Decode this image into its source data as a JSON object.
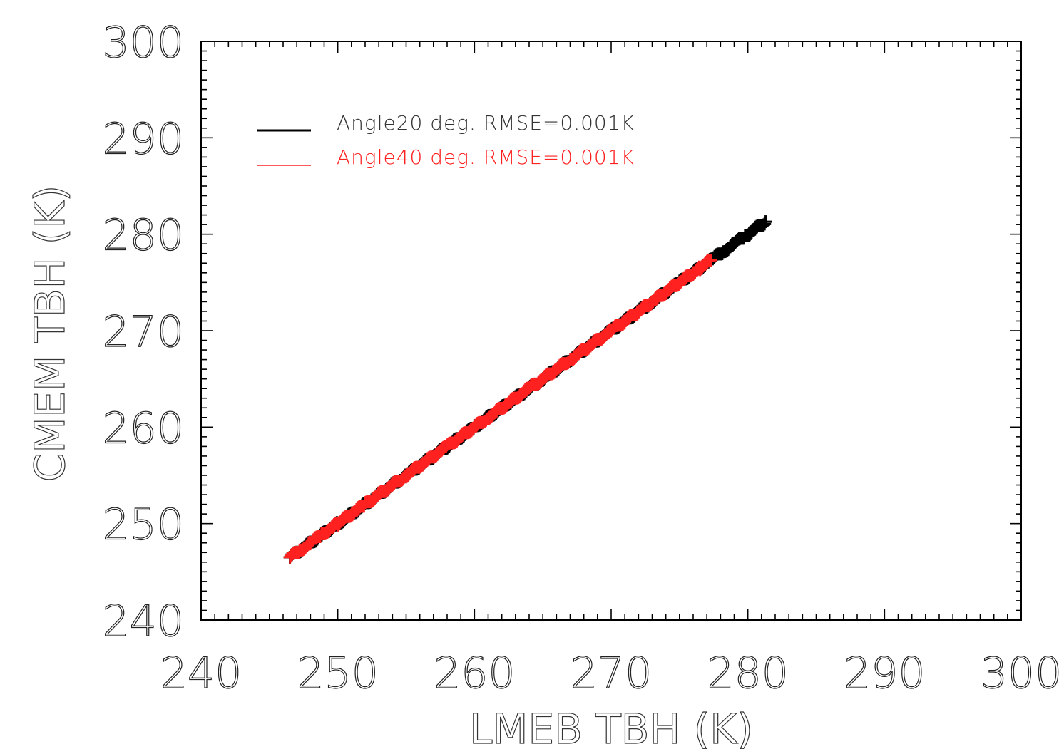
{
  "chart_data": {
    "type": "scatter",
    "title": "",
    "xlabel": "LMEB TBH (K)",
    "ylabel": "CMEM TBH (K)",
    "xlim": [
      240,
      300
    ],
    "ylim": [
      240,
      300
    ],
    "xticks": [
      240,
      250,
      260,
      270,
      280,
      290,
      300
    ],
    "yticks": [
      240,
      250,
      260,
      270,
      280,
      290,
      300
    ],
    "grid": false,
    "legend_position": "top-left",
    "marker": "plus",
    "series": [
      {
        "name": "Angle20 deg. RMSE=0.001K",
        "color": "#000000",
        "x_range": [
          246.5,
          281.5
        ],
        "values_description_free": true,
        "points": [
          [
            246.5,
            246.5
          ],
          [
            250,
            250
          ],
          [
            255,
            255
          ],
          [
            260,
            260
          ],
          [
            265,
            265
          ],
          [
            270,
            270
          ],
          [
            273,
            273
          ],
          [
            275,
            275
          ],
          [
            276.5,
            276.5
          ],
          [
            277.5,
            277.5
          ],
          [
            278.2,
            278.2
          ],
          [
            279,
            279
          ],
          [
            279.8,
            279.8
          ],
          [
            280.2,
            280.2
          ],
          [
            281.3,
            281.3
          ]
        ]
      },
      {
        "name": "Angle40 deg. RMSE=0.001K",
        "color": "#ff2020",
        "x_range": [
          246.5,
          277.5
        ],
        "points": [
          [
            246.5,
            246.5
          ],
          [
            247.2,
            247.2
          ],
          [
            248,
            248
          ],
          [
            248.8,
            248.8
          ],
          [
            250,
            250
          ],
          [
            252,
            252
          ],
          [
            255,
            255
          ],
          [
            258,
            258
          ],
          [
            261,
            261
          ],
          [
            264,
            264
          ],
          [
            267,
            267
          ],
          [
            270,
            270
          ],
          [
            272.5,
            272.5
          ],
          [
            274,
            274
          ],
          [
            275.5,
            275.5
          ],
          [
            276.5,
            276.5
          ],
          [
            277.3,
            277.3
          ]
        ]
      }
    ]
  }
}
